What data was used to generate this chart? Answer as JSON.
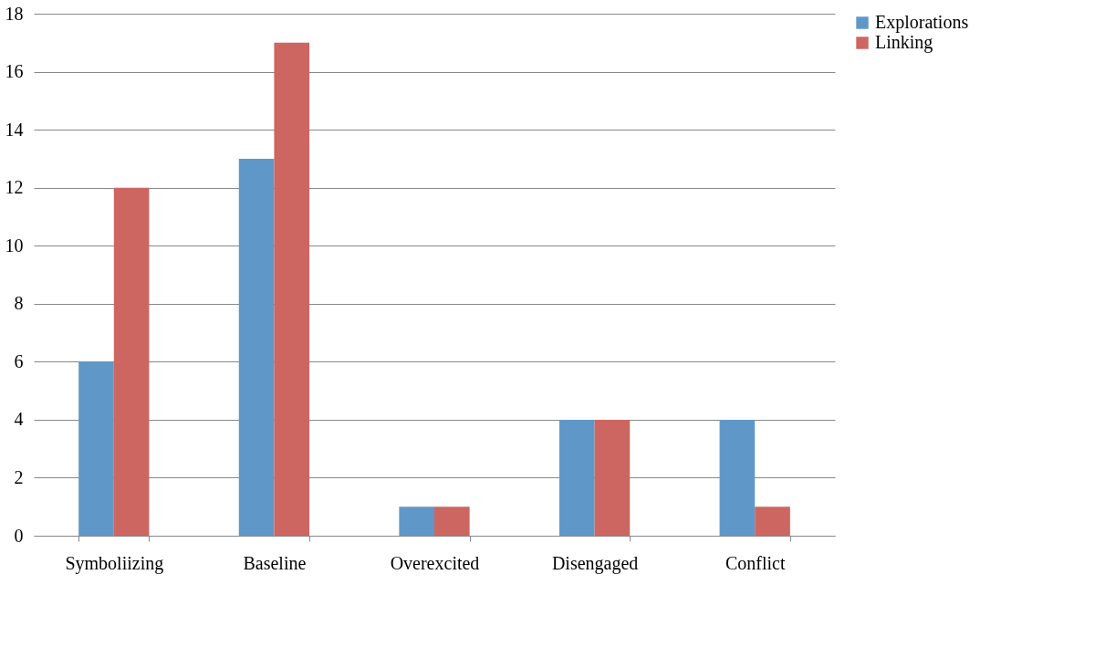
{
  "chart_data": {
    "type": "bar",
    "categories": [
      "Symboliizing",
      "Baseline",
      "Overexcited",
      "Disengaged",
      "Conflict"
    ],
    "series": [
      {
        "name": "Explorations",
        "color": "#6097c9",
        "values": [
          6,
          13,
          1,
          4,
          4
        ]
      },
      {
        "name": "Linking",
        "color": "#cd6660",
        "values": [
          12,
          17,
          1,
          4,
          1
        ]
      }
    ],
    "ylim": [
      0,
      18
    ],
    "yticks": [
      0,
      2,
      4,
      6,
      8,
      10,
      12,
      14,
      16,
      18
    ],
    "grid": "y",
    "legend": "right"
  }
}
